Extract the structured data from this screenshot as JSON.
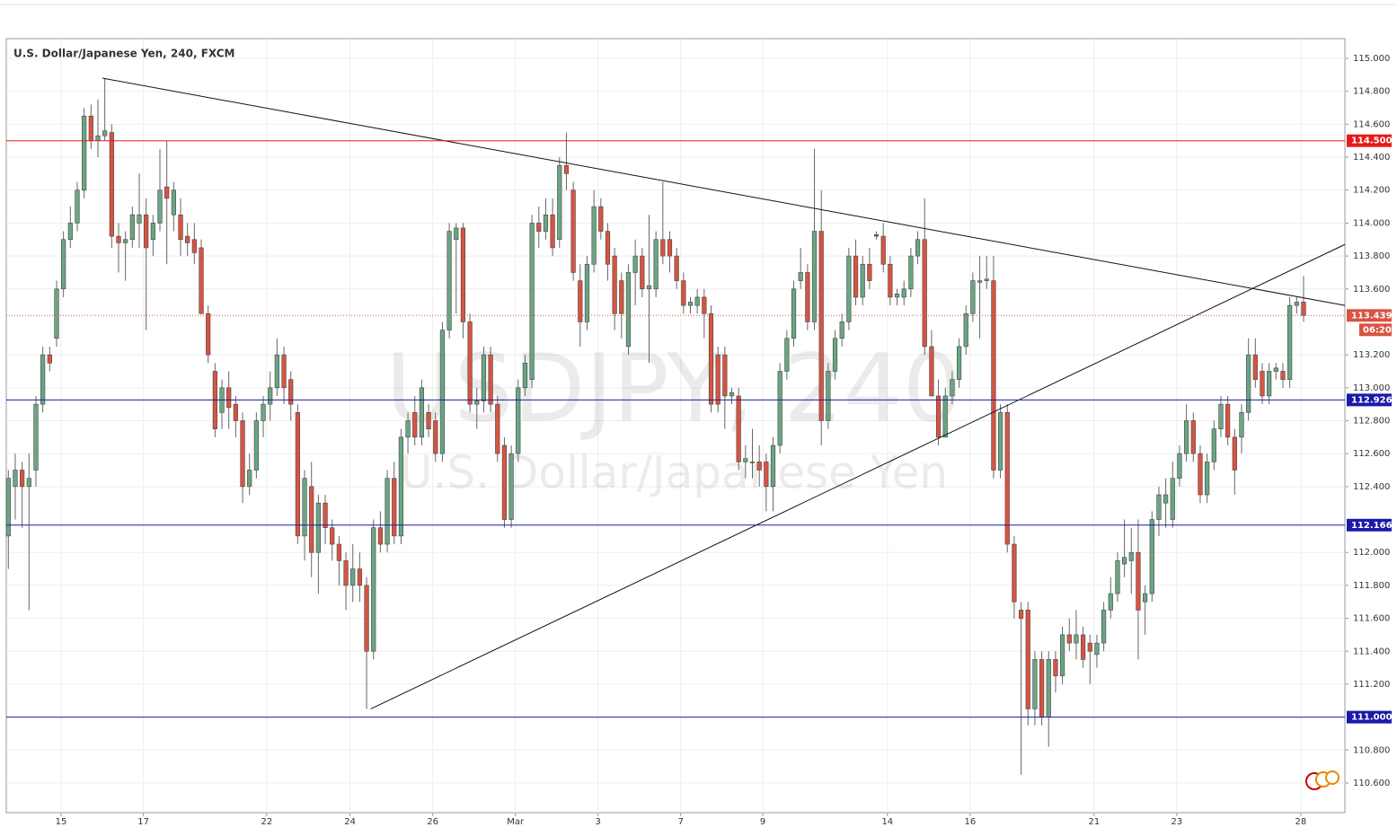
{
  "chart_data": {
    "type": "candlestick",
    "title": "U.S. Dollar/Japanese Yen, 240, FXCM",
    "watermark": "USDJPY, 240",
    "watermark_subtitle": "U.S. Dollar/Japanese Yen",
    "up_color": "#6ba583",
    "down_color": "#d75442",
    "grid": true,
    "xlim": [
      -0.3,
      194
    ],
    "ylim": [
      110.42,
      115.12
    ],
    "xticks": [
      {
        "value": 7.65,
        "label": "15"
      },
      {
        "value": 19.6,
        "label": "17"
      },
      {
        "value": 37.5,
        "label": "22"
      },
      {
        "value": 49.6,
        "label": "24"
      },
      {
        "value": 61.6,
        "label": "26"
      },
      {
        "value": 73.6,
        "label": "Mar"
      },
      {
        "value": 85.6,
        "label": "3"
      },
      {
        "value": 97.6,
        "label": "7"
      },
      {
        "value": 109.5,
        "label": "9"
      },
      {
        "value": 127.6,
        "label": "14"
      },
      {
        "value": 139.6,
        "label": "16"
      },
      {
        "value": 157.6,
        "label": "21"
      },
      {
        "value": 169.6,
        "label": "23"
      },
      {
        "value": 187.6,
        "label": "28"
      }
    ],
    "yticks": [
      {
        "value": 115.0,
        "label": "115.000"
      },
      {
        "value": 114.8,
        "label": "114.800"
      },
      {
        "value": 114.6,
        "label": "114.600"
      },
      {
        "value": 114.4,
        "label": "114.400"
      },
      {
        "value": 114.2,
        "label": "114.200"
      },
      {
        "value": 114.0,
        "label": "114.000"
      },
      {
        "value": 113.8,
        "label": "113.800"
      },
      {
        "value": 113.6,
        "label": "113.600"
      },
      {
        "value": 113.2,
        "label": "113.200"
      },
      {
        "value": 113.0,
        "label": "113.000"
      },
      {
        "value": 112.8,
        "label": "112.800"
      },
      {
        "value": 112.6,
        "label": "112.600"
      },
      {
        "value": 112.4,
        "label": "112.400"
      },
      {
        "value": 112.0,
        "label": "112.000"
      },
      {
        "value": 111.8,
        "label": "111.800"
      },
      {
        "value": 111.6,
        "label": "111.600"
      },
      {
        "value": 111.4,
        "label": "111.400"
      },
      {
        "value": 111.2,
        "label": "111.200"
      },
      {
        "value": 110.8,
        "label": "110.800"
      },
      {
        "value": 110.6,
        "label": "110.600"
      }
    ],
    "levels": [
      {
        "value": 114.5,
        "label": "114.500",
        "color": "#e8191b"
      },
      {
        "value": 112.926,
        "label": "112.926",
        "color": "#1a1aa8"
      },
      {
        "value": 112.166,
        "label": "112.166",
        "color": "#1a1aa8"
      },
      {
        "value": 111.0,
        "label": "111.000",
        "color": "#1a1aa8"
      }
    ],
    "last_price": {
      "value": 113.439,
      "label": "113.439",
      "countdown": "06:20",
      "color": "#d75442"
    },
    "trendlines": [
      {
        "x": [
          13.65,
          194
        ],
        "y": [
          114.88,
          113.5
        ]
      },
      {
        "x": [
          52.6,
          194
        ],
        "y": [
          111.05,
          113.87
        ]
      }
    ],
    "ohlc": [
      [
        112.1,
        112.5,
        111.9,
        112.45
      ],
      [
        112.4,
        112.6,
        112.2,
        112.5
      ],
      [
        112.5,
        112.55,
        112.15,
        112.4
      ],
      [
        112.4,
        112.6,
        111.65,
        112.45
      ],
      [
        112.5,
        112.95,
        112.4,
        112.9
      ],
      [
        112.9,
        113.25,
        112.85,
        113.2
      ],
      [
        113.2,
        113.25,
        113.1,
        113.15
      ],
      [
        113.3,
        113.65,
        113.25,
        113.6
      ],
      [
        113.6,
        113.95,
        113.55,
        113.9
      ],
      [
        113.9,
        114.1,
        113.85,
        114.0
      ],
      [
        114.0,
        114.25,
        113.95,
        114.2
      ],
      [
        114.2,
        114.7,
        114.15,
        114.65
      ],
      [
        114.65,
        114.72,
        114.45,
        114.5
      ],
      [
        114.5,
        114.75,
        114.4,
        114.53
      ],
      [
        114.53,
        114.88,
        114.5,
        114.56
      ],
      [
        114.55,
        114.6,
        113.85,
        113.92
      ],
      [
        113.92,
        114.0,
        113.7,
        113.88
      ],
      [
        113.88,
        113.95,
        113.65,
        113.9
      ],
      [
        113.9,
        114.1,
        113.85,
        114.05
      ],
      [
        114.0,
        114.3,
        113.85,
        114.05
      ],
      [
        114.05,
        114.15,
        113.35,
        113.85
      ],
      [
        113.9,
        114.05,
        113.8,
        114.0
      ],
      [
        114.0,
        114.45,
        113.95,
        114.2
      ],
      [
        114.22,
        114.5,
        113.75,
        114.15
      ],
      [
        114.05,
        114.25,
        113.95,
        114.2
      ],
      [
        114.05,
        114.15,
        113.8,
        113.9
      ],
      [
        113.92,
        114.0,
        113.8,
        113.88
      ],
      [
        113.9,
        114.0,
        113.75,
        113.82
      ],
      [
        113.85,
        113.9,
        113.45,
        113.45
      ],
      [
        113.45,
        113.5,
        113.15,
        113.2
      ],
      [
        113.1,
        113.15,
        112.7,
        112.75
      ],
      [
        112.85,
        113.05,
        112.75,
        113.0
      ],
      [
        113.0,
        113.1,
        112.75,
        112.88
      ],
      [
        112.9,
        112.95,
        112.7,
        112.8
      ],
      [
        112.8,
        112.85,
        112.3,
        112.4
      ],
      [
        112.4,
        112.6,
        112.35,
        112.5
      ],
      [
        112.5,
        112.85,
        112.45,
        112.8
      ],
      [
        112.8,
        112.95,
        112.7,
        112.9
      ],
      [
        112.9,
        113.1,
        112.8,
        113.0
      ],
      [
        113.0,
        113.3,
        112.95,
        113.2
      ],
      [
        113.2,
        113.25,
        112.9,
        113.0
      ],
      [
        113.05,
        113.1,
        112.8,
        112.9
      ],
      [
        112.85,
        112.9,
        112.05,
        112.1
      ],
      [
        112.1,
        112.5,
        111.95,
        112.45
      ],
      [
        112.4,
        112.55,
        111.85,
        112.0
      ],
      [
        112.0,
        112.35,
        111.75,
        112.3
      ],
      [
        112.3,
        112.35,
        112.05,
        112.15
      ],
      [
        112.15,
        112.2,
        111.95,
        112.05
      ],
      [
        112.05,
        112.1,
        111.8,
        111.95
      ],
      [
        111.95,
        112.0,
        111.65,
        111.8
      ],
      [
        111.8,
        112.05,
        111.7,
        111.9
      ],
      [
        111.9,
        112.0,
        111.7,
        111.8
      ],
      [
        111.8,
        111.85,
        111.05,
        111.4
      ],
      [
        111.4,
        112.2,
        111.35,
        112.15
      ],
      [
        112.15,
        112.25,
        112.0,
        112.05
      ],
      [
        112.05,
        112.5,
        112.0,
        112.45
      ],
      [
        112.45,
        112.55,
        112.05,
        112.1
      ],
      [
        112.1,
        112.75,
        112.05,
        112.7
      ],
      [
        112.7,
        112.85,
        112.6,
        112.8
      ],
      [
        112.85,
        112.95,
        112.65,
        112.7
      ],
      [
        112.7,
        113.05,
        112.65,
        113.0
      ],
      [
        112.85,
        112.9,
        112.7,
        112.75
      ],
      [
        112.8,
        112.85,
        112.55,
        112.6
      ],
      [
        112.6,
        113.4,
        112.55,
        113.35
      ],
      [
        113.35,
        114.0,
        113.3,
        113.95
      ],
      [
        113.9,
        114.0,
        113.45,
        113.97
      ],
      [
        113.97,
        114.0,
        113.3,
        113.4
      ],
      [
        113.4,
        113.45,
        112.85,
        112.9
      ],
      [
        112.9,
        113.0,
        112.75,
        112.92
      ],
      [
        112.92,
        113.25,
        112.85,
        113.2
      ],
      [
        113.2,
        113.25,
        112.85,
        112.9
      ],
      [
        112.9,
        112.95,
        112.55,
        112.6
      ],
      [
        112.65,
        112.7,
        112.15,
        112.2
      ],
      [
        112.2,
        112.65,
        112.15,
        112.6
      ],
      [
        112.6,
        113.05,
        112.55,
        113.0
      ],
      [
        113.0,
        113.2,
        112.95,
        113.15
      ],
      [
        113.05,
        114.05,
        113.0,
        114.0
      ],
      [
        114.0,
        114.1,
        113.85,
        113.95
      ],
      [
        113.95,
        114.15,
        113.9,
        114.05
      ],
      [
        114.05,
        114.15,
        113.8,
        113.85
      ],
      [
        113.9,
        114.4,
        113.85,
        114.35
      ],
      [
        114.35,
        114.55,
        114.2,
        114.3
      ],
      [
        114.2,
        114.25,
        113.65,
        113.7
      ],
      [
        113.65,
        113.75,
        113.25,
        113.4
      ],
      [
        113.4,
        113.8,
        113.35,
        113.75
      ],
      [
        113.75,
        114.2,
        113.7,
        114.1
      ],
      [
        114.1,
        114.15,
        113.9,
        113.95
      ],
      [
        113.95,
        114.0,
        113.65,
        113.75
      ],
      [
        113.8,
        113.85,
        113.35,
        113.45
      ],
      [
        113.65,
        113.7,
        113.3,
        113.45
      ],
      [
        113.25,
        113.75,
        113.2,
        113.7
      ],
      [
        113.7,
        113.9,
        113.5,
        113.8
      ],
      [
        113.8,
        113.85,
        113.55,
        113.6
      ],
      [
        113.6,
        114.05,
        113.15,
        113.62
      ],
      [
        113.6,
        113.95,
        113.55,
        113.9
      ],
      [
        113.9,
        114.25,
        113.75,
        113.8
      ],
      [
        113.9,
        113.95,
        113.7,
        113.8
      ],
      [
        113.8,
        113.85,
        113.6,
        113.65
      ],
      [
        113.65,
        113.7,
        113.45,
        113.5
      ],
      [
        113.5,
        113.55,
        113.45,
        113.52
      ],
      [
        113.5,
        113.6,
        113.45,
        113.55
      ],
      [
        113.55,
        113.6,
        113.3,
        113.45
      ],
      [
        113.45,
        113.5,
        112.85,
        112.9
      ],
      [
        113.2,
        113.25,
        112.85,
        112.9
      ],
      [
        113.2,
        113.25,
        112.75,
        112.95
      ],
      [
        112.95,
        113.0,
        112.9,
        112.97
      ],
      [
        112.95,
        113.0,
        112.5,
        112.55
      ],
      [
        112.55,
        112.65,
        112.45,
        112.57
      ],
      [
        112.55,
        112.75,
        112.45,
        112.55
      ],
      [
        112.55,
        112.65,
        112.4,
        112.5
      ],
      [
        112.55,
        112.6,
        112.25,
        112.4
      ],
      [
        112.4,
        112.7,
        112.25,
        112.65
      ],
      [
        112.65,
        113.15,
        112.6,
        113.1
      ],
      [
        113.1,
        113.35,
        113.05,
        113.3
      ],
      [
        113.3,
        113.65,
        113.25,
        113.6
      ],
      [
        113.65,
        113.85,
        113.6,
        113.7
      ],
      [
        113.7,
        113.75,
        113.35,
        113.4
      ],
      [
        113.4,
        114.45,
        113.35,
        113.95
      ],
      [
        113.95,
        114.2,
        112.65,
        112.8
      ],
      [
        112.8,
        113.15,
        112.75,
        113.1
      ],
      [
        113.1,
        113.35,
        113.05,
        113.3
      ],
      [
        113.3,
        113.45,
        113.25,
        113.4
      ],
      [
        113.4,
        113.85,
        113.35,
        113.8
      ],
      [
        113.8,
        113.9,
        113.5,
        113.55
      ],
      [
        113.55,
        113.8,
        113.5,
        113.75
      ],
      [
        113.75,
        113.85,
        113.6,
        113.65
      ],
      [
        113.93,
        113.95,
        113.9,
        113.92
      ],
      [
        113.92,
        114.0,
        113.7,
        113.75
      ],
      [
        113.75,
        113.8,
        113.5,
        113.55
      ],
      [
        113.55,
        113.6,
        113.5,
        113.57
      ],
      [
        113.55,
        113.65,
        113.5,
        113.6
      ],
      [
        113.6,
        113.85,
        113.55,
        113.8
      ],
      [
        113.8,
        113.95,
        113.75,
        113.9
      ],
      [
        113.9,
        114.15,
        113.2,
        113.25
      ],
      [
        113.25,
        113.35,
        112.95,
        112.95
      ],
      [
        112.95,
        113.05,
        112.65,
        112.7
      ],
      [
        112.7,
        113.0,
        112.7,
        112.95
      ],
      [
        112.95,
        113.1,
        112.9,
        113.05
      ],
      [
        113.05,
        113.3,
        113.0,
        113.25
      ],
      [
        113.25,
        113.5,
        113.2,
        113.45
      ],
      [
        113.45,
        113.7,
        113.4,
        113.65
      ],
      [
        113.64,
        113.8,
        113.3,
        113.65
      ],
      [
        113.65,
        113.8,
        113.6,
        113.66
      ],
      [
        113.65,
        113.8,
        112.45,
        112.5
      ],
      [
        112.5,
        112.9,
        112.45,
        112.85
      ],
      [
        112.85,
        112.9,
        112.0,
        112.05
      ],
      [
        112.05,
        112.1,
        111.6,
        111.7
      ],
      [
        111.65,
        111.7,
        110.65,
        111.6
      ],
      [
        111.65,
        111.7,
        110.95,
        111.05
      ],
      [
        111.05,
        111.4,
        110.95,
        111.35
      ],
      [
        111.35,
        111.4,
        110.95,
        111.0
      ],
      [
        111.0,
        111.4,
        110.82,
        111.35
      ],
      [
        111.35,
        111.4,
        111.15,
        111.25
      ],
      [
        111.25,
        111.55,
        111.2,
        111.5
      ],
      [
        111.5,
        111.6,
        111.4,
        111.45
      ],
      [
        111.45,
        111.65,
        111.35,
        111.5
      ],
      [
        111.5,
        111.55,
        111.3,
        111.35
      ],
      [
        111.45,
        111.5,
        111.2,
        111.4
      ],
      [
        111.38,
        111.5,
        111.3,
        111.45
      ],
      [
        111.45,
        111.7,
        111.4,
        111.65
      ],
      [
        111.65,
        111.85,
        111.6,
        111.75
      ],
      [
        111.75,
        112.0,
        111.7,
        111.95
      ],
      [
        111.93,
        112.2,
        111.85,
        111.97
      ],
      [
        111.95,
        112.15,
        111.75,
        112.0
      ],
      [
        112.0,
        112.2,
        111.35,
        111.65
      ],
      [
        111.7,
        111.8,
        111.5,
        111.75
      ],
      [
        111.75,
        112.25,
        111.7,
        112.2
      ],
      [
        112.2,
        112.4,
        112.1,
        112.35
      ],
      [
        112.3,
        112.45,
        112.15,
        112.35
      ],
      [
        112.2,
        112.55,
        112.15,
        112.45
      ],
      [
        112.45,
        112.65,
        112.4,
        112.6
      ],
      [
        112.6,
        112.9,
        112.55,
        112.8
      ],
      [
        112.8,
        112.85,
        112.55,
        112.6
      ],
      [
        112.6,
        112.65,
        112.3,
        112.35
      ],
      [
        112.35,
        112.6,
        112.3,
        112.55
      ],
      [
        112.55,
        112.8,
        112.5,
        112.75
      ],
      [
        112.75,
        112.95,
        112.7,
        112.9
      ],
      [
        112.9,
        112.95,
        112.65,
        112.7
      ],
      [
        112.7,
        112.75,
        112.35,
        112.5
      ],
      [
        112.7,
        112.9,
        112.6,
        112.85
      ],
      [
        112.85,
        113.3,
        112.8,
        113.2
      ],
      [
        113.2,
        113.3,
        113.0,
        113.05
      ],
      [
        113.1,
        113.15,
        112.9,
        112.95
      ],
      [
        112.95,
        113.15,
        112.9,
        113.1
      ],
      [
        113.1,
        113.15,
        113.05,
        113.12
      ],
      [
        113.1,
        113.15,
        113.0,
        113.05
      ],
      [
        113.05,
        113.55,
        113.0,
        113.5
      ],
      [
        113.5,
        113.55,
        113.45,
        113.52
      ],
      [
        113.52,
        113.68,
        113.4,
        113.439
      ]
    ]
  }
}
